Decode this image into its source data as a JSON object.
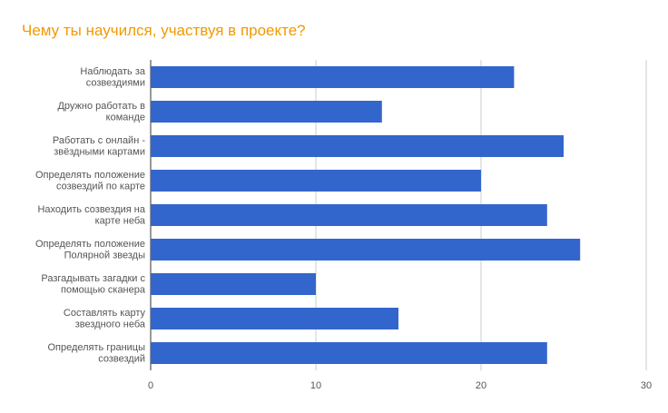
{
  "chart_data": {
    "type": "bar",
    "orientation": "horizontal",
    "title": "Чему ты научился, участвуя в проекте?",
    "categories": [
      [
        "Наблюдать за",
        "созвездиями"
      ],
      [
        "Дружно работать в",
        "команде"
      ],
      [
        "Работать с онлайн -",
        "звёздными картами"
      ],
      [
        "Определять положение",
        "созвездий по карте"
      ],
      [
        "Находить созвездия на",
        "карте неба"
      ],
      [
        "Определять положение",
        "Полярной звезды"
      ],
      [
        "Разгадывать загадки  с",
        "помощью сканера"
      ],
      [
        "Составлять карту",
        "звездного неба"
      ],
      [
        "Определять  границы",
        "созвездий"
      ]
    ],
    "values": [
      22,
      14,
      25,
      20,
      24,
      26,
      10,
      15,
      24
    ],
    "xlim": [
      0,
      30
    ],
    "xticks": [
      0,
      10,
      20,
      30
    ],
    "grid": true,
    "bar_color": "#3366cc"
  }
}
